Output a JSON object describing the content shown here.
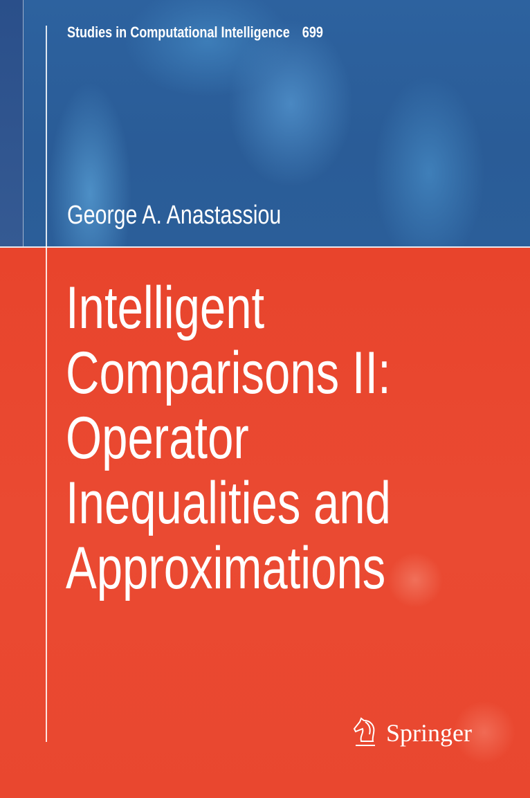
{
  "cover": {
    "series": "Studies in Computational Intelligence",
    "volume": "699",
    "author": "George A. Anastassiou",
    "title_lines": [
      "Intelligent",
      "Comparisons II:",
      "Operator",
      "Inequalities and",
      "Approximations"
    ],
    "publisher": "Springer",
    "publisher_logo_icon": "springer-horse-icon",
    "colors": {
      "top_band": "#2b5e99",
      "bottom_band": "#e9472f",
      "text": "#ffffff"
    }
  }
}
